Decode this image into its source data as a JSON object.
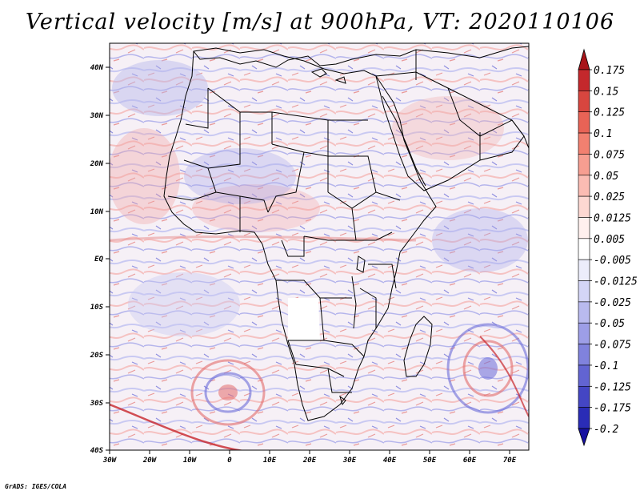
{
  "title": "Vertical velocity [m/s] at 900hPa, VT: 2020110106",
  "footer": "GrADS: IGES/COLA",
  "lon_ticks": [
    "30W",
    "20W",
    "10W",
    "0",
    "10E",
    "20E",
    "30E",
    "40E",
    "50E",
    "60E",
    "70E"
  ],
  "lat_ticks": [
    "40N",
    "30N",
    "20N",
    "10N",
    "EQ",
    "10S",
    "20S",
    "30S",
    "40S"
  ],
  "colorbar": {
    "levels": [
      "0.175",
      "0.15",
      "0.125",
      "0.1",
      "0.075",
      "0.05",
      "0.025",
      "0.0125",
      "0.005",
      "-0.005",
      "-0.0125",
      "-0.025",
      "-0.05",
      "-0.075",
      "-0.1",
      "-0.125",
      "-0.175",
      "-0.2"
    ],
    "colors": [
      "#a8141a",
      "#c4282c",
      "#d8463f",
      "#e86356",
      "#f28070",
      "#f79e91",
      "#fbbcb3",
      "#fdd8d2",
      "#fff0ee",
      "#ffffff",
      "#ecedfb",
      "#d4d5f6",
      "#b9baef",
      "#9d9ee7",
      "#8082dd",
      "#6264d2",
      "#4446c4",
      "#2a2cb6",
      "#1610a0"
    ]
  },
  "chart_data": {
    "type": "heatmap",
    "variable": "Vertical velocity",
    "units": "m/s",
    "level": "900hPa",
    "valid_time": "2020110106",
    "lon_range": [
      -30,
      75
    ],
    "lat_range": [
      -40,
      45
    ],
    "colorbar_min": -0.2,
    "colorbar_max": 0.175
  }
}
